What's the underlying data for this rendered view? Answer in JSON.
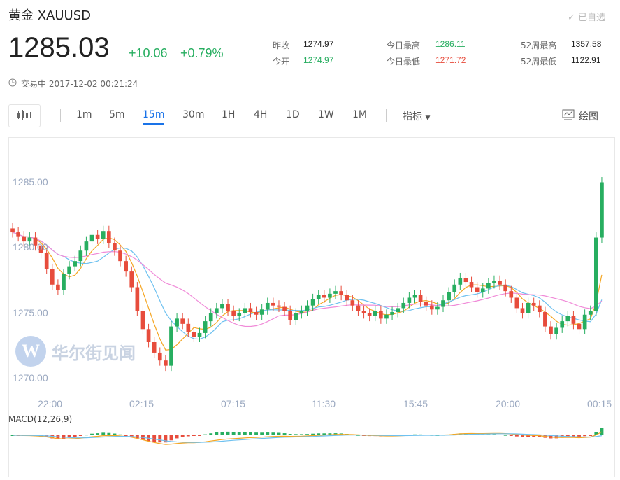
{
  "header": {
    "title": "黄金  XAUUSD",
    "watch_label": "✓ 已自选",
    "price": "1285.03",
    "change": "+10.06",
    "change_pct": "+0.79%",
    "status": "交易中 2017-12-02 00:21:24"
  },
  "stats": {
    "prev_close_label": "昨收",
    "prev_close": "1274.97",
    "open_label": "今开",
    "open": "1274.97",
    "high_label": "今日最高",
    "high": "1286.11",
    "low_label": "今日最低",
    "low": "1271.72",
    "w52_high_label": "52周最高",
    "w52_high": "1357.58",
    "w52_low_label": "52周最低",
    "w52_low": "1122.91"
  },
  "toolbar": {
    "periods": [
      "1m",
      "5m",
      "15m",
      "30m",
      "1H",
      "4H",
      "1D",
      "1W",
      "1M"
    ],
    "active_period": "15m",
    "indicator_label": "指标",
    "draw_label": "绘图"
  },
  "watermark": "华尔街见闻",
  "macd_label": "MACD(12,26,9)",
  "colors": {
    "up": "#27ae60",
    "down": "#e74c3c",
    "accent": "#1a73e8"
  },
  "chart_data": {
    "type": "candlestick",
    "ylim": [
      1269,
      1288
    ],
    "yticks": [
      "1285.00",
      "1280.00",
      "1275.00",
      "1270.00"
    ],
    "yticks_values": [
      1285,
      1280,
      1275,
      1270
    ],
    "xticks": [
      "22:00",
      "02:15",
      "07:15",
      "11:30",
      "15:45",
      "20:00",
      "00:15"
    ],
    "closes": [
      1281.2,
      1280.9,
      1280.5,
      1280.8,
      1280.2,
      1279.6,
      1278.4,
      1277.2,
      1276.8,
      1278.0,
      1278.6,
      1279.0,
      1279.8,
      1280.5,
      1281.0,
      1280.7,
      1281.3,
      1280.4,
      1279.8,
      1279.0,
      1278.2,
      1277.0,
      1275.2,
      1273.8,
      1272.8,
      1272.0,
      1271.4,
      1271.0,
      1274.0,
      1274.6,
      1274.2,
      1273.6,
      1273.2,
      1273.5,
      1274.4,
      1275.0,
      1275.4,
      1275.7,
      1275.2,
      1274.8,
      1275.0,
      1275.4,
      1275.1,
      1274.9,
      1275.3,
      1275.8,
      1275.6,
      1275.5,
      1275.2,
      1274.5,
      1275.0,
      1275.2,
      1275.6,
      1276.1,
      1276.4,
      1276.2,
      1276.5,
      1276.7,
      1276.4,
      1276.0,
      1275.6,
      1275.2,
      1275.0,
      1274.8,
      1275.2,
      1274.6,
      1274.9,
      1275.1,
      1275.4,
      1275.8,
      1276.2,
      1276.4,
      1275.9,
      1275.6,
      1275.3,
      1275.5,
      1276.0,
      1276.6,
      1277.2,
      1277.7,
      1277.4,
      1277.0,
      1276.6,
      1276.9,
      1277.3,
      1277.5,
      1277.2,
      1276.7,
      1276.2,
      1275.4,
      1275.0,
      1275.8,
      1275.6,
      1275.1,
      1274.0,
      1273.4,
      1273.9,
      1274.4,
      1274.8,
      1274.2,
      1273.8,
      1274.9,
      1275.2,
      1280.8,
      1285.03
    ]
  }
}
